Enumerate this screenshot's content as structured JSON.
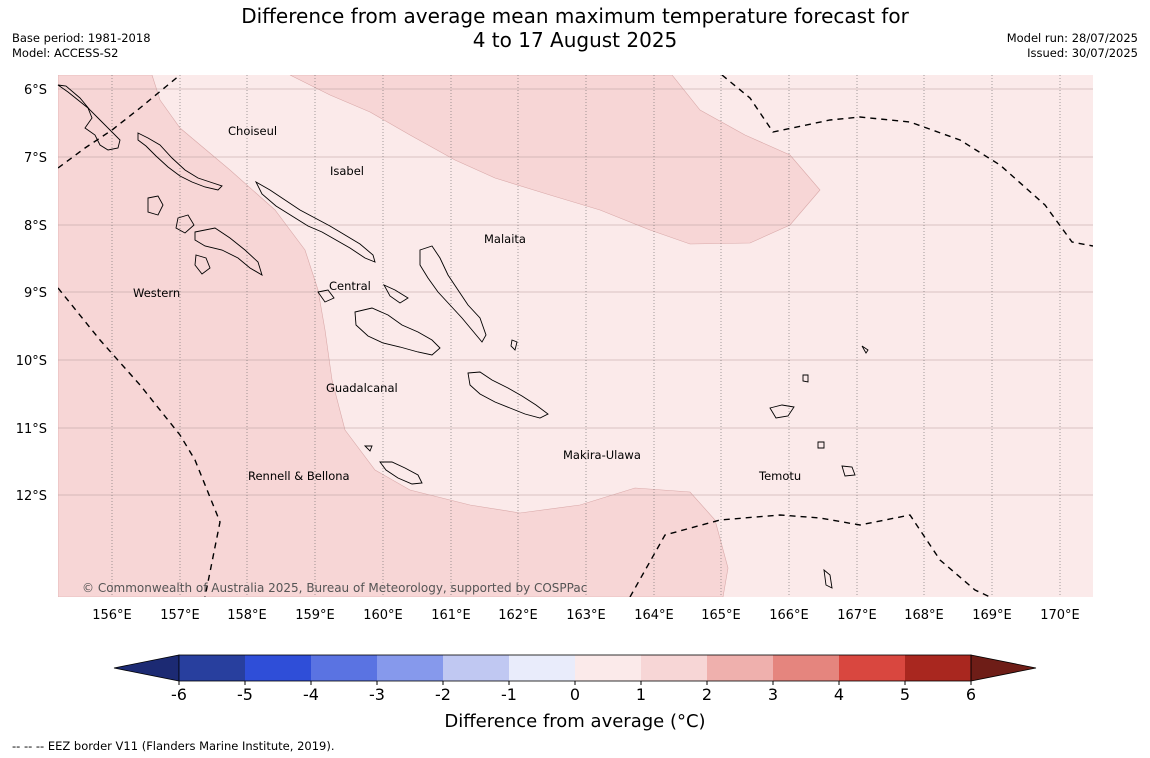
{
  "title": {
    "line1": "Difference from average mean maximum temperature forecast for",
    "line2": "4 to 17 August 2025"
  },
  "meta_left": {
    "base_period": "Base period: 1981-2018",
    "model": "Model: ACCESS-S2"
  },
  "meta_right": {
    "model_run": "Model run: 28/07/2025",
    "issued": "Issued: 30/07/2025"
  },
  "latitudes": [
    "6°S",
    "7°S",
    "8°S",
    "9°S",
    "10°S",
    "11°S",
    "12°S"
  ],
  "longitudes": [
    "156°E",
    "157°E",
    "158°E",
    "159°E",
    "160°E",
    "161°E",
    "162°E",
    "163°E",
    "164°E",
    "165°E",
    "166°E",
    "167°E",
    "168°E",
    "169°E",
    "170°E"
  ],
  "provinces": [
    "Choiseul",
    "Isabel",
    "Malaita",
    "Western",
    "Central",
    "Guadalcanal",
    "Makira-Ulawa",
    "Rennell & Bellona",
    "Temotu"
  ],
  "copyright": "© Commonwealth of Australia 2025, Bureau of Meteorology, supported by COSPPac",
  "colorbar": {
    "ticks": [
      "-6",
      "-5",
      "-4",
      "-3",
      "-2",
      "-1",
      "0",
      "1",
      "2",
      "3",
      "4",
      "5",
      "6"
    ],
    "colors": [
      "#283f9e",
      "#2f4ed8",
      "#5a73e2",
      "#8699ec",
      "#c0c8f2",
      "#e9ecfb",
      "#fbeaea",
      "#f7d6d6",
      "#efb0ad",
      "#e5857e",
      "#d9473f",
      "#a9271f"
    ],
    "low_extend_color": "#1c2a73",
    "high_extend_color": "#6e1d17",
    "title": "Difference from average (°C)"
  },
  "map_colors": {
    "band_0_1": "#fbeaea",
    "band_1_2": "#f7d6d6"
  },
  "footnote": "--  --  -- EEZ border V11 (Flanders Marine Institute, 2019)."
}
